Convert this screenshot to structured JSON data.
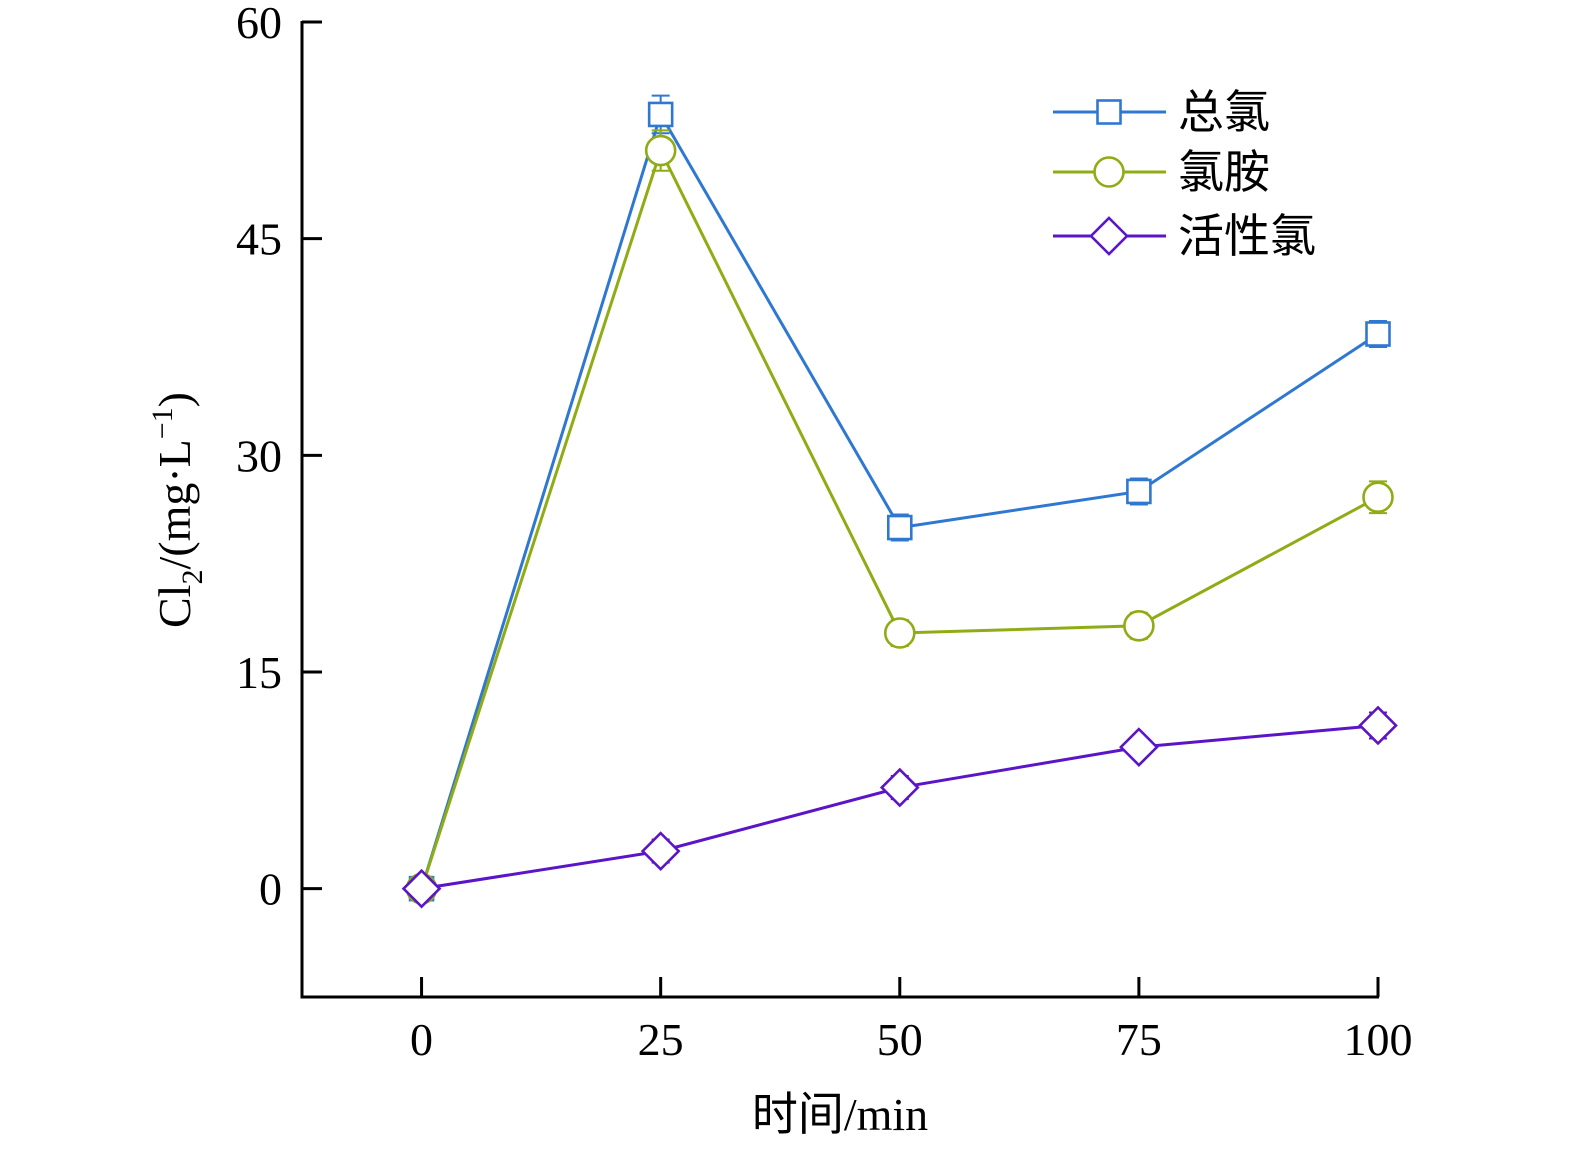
{
  "chart_data": {
    "type": "line",
    "title": "",
    "xlabel": "时间/min",
    "ylabel": {
      "prefix": "Cl",
      "sub": "2",
      "mid": "/(mg·L",
      "sup": "−1",
      "suffix": ")"
    },
    "x": [
      0,
      25,
      50,
      75,
      100
    ],
    "xlim": [
      -12.5,
      100
    ],
    "ylim": [
      -7.5,
      60
    ],
    "xticks": [
      0,
      25,
      50,
      75,
      100
    ],
    "yticks": [
      0,
      15,
      30,
      45,
      60
    ],
    "xtick_labels": [
      "0",
      "25",
      "50",
      "75",
      "100"
    ],
    "ytick_labels": [
      "0",
      "15",
      "30",
      "45",
      "60"
    ],
    "grid": false,
    "legend_position": "top-right",
    "series": [
      {
        "name": "总氯",
        "marker": "square",
        "color": "#2f78d2",
        "values": [
          0,
          53.6,
          25.0,
          27.5,
          38.4
        ],
        "errors": [
          0.3,
          1.3,
          0.9,
          0.9,
          0.9
        ]
      },
      {
        "name": "氯胺",
        "marker": "circle",
        "color": "#8fac14",
        "values": [
          0,
          51.1,
          17.7,
          18.2,
          27.1
        ],
        "errors": [
          0.3,
          1.4,
          0.9,
          0.9,
          1.1
        ]
      },
      {
        "name": "活性氯",
        "marker": "diamond",
        "color": "#5b14c8",
        "values": [
          0,
          2.6,
          7.0,
          9.8,
          11.3
        ],
        "errors": [
          0.2,
          0.8,
          0.8,
          0.3,
          0.9
        ]
      }
    ]
  }
}
